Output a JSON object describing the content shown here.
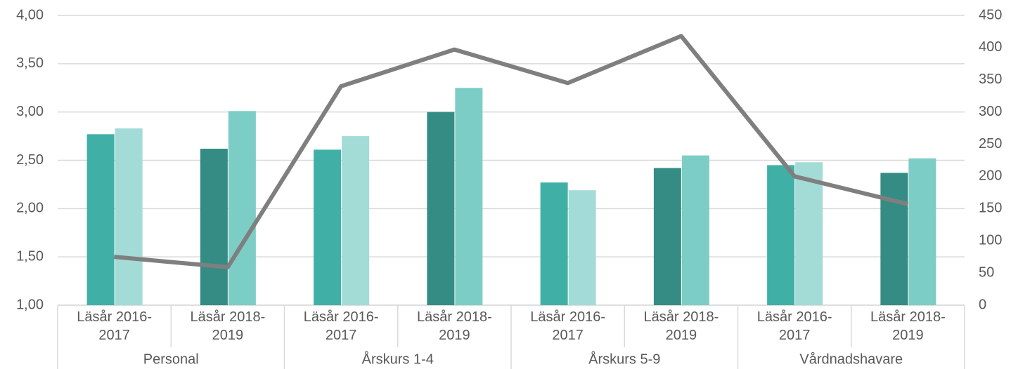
{
  "chart_data": {
    "type": "bar",
    "categories": [
      "Läsår 2016-2017",
      "Läsår 2018-2019",
      "Läsår 2016-2017",
      "Läsår 2018-2019",
      "Läsår 2016-2017",
      "Läsår 2018-2019",
      "Läsår 2016-2017",
      "Läsår 2018-2019"
    ],
    "groups": [
      "Personal",
      "Årskurs 1-4",
      "Årskurs 5-9",
      "Vårdnadshavare"
    ],
    "series": [
      {
        "type": "bar",
        "colors": [
          "#40b0a6",
          "#358c84",
          "#40b0a6",
          "#358c84",
          "#40b0a6",
          "#358c84",
          "#40b0a6",
          "#358c84"
        ],
        "values": [
          2.77,
          2.62,
          2.61,
          3.0,
          2.27,
          2.42,
          2.45,
          2.37
        ]
      },
      {
        "type": "bar",
        "colors": [
          "#a3dbd7",
          "#7ccdc5",
          "#a3dbd7",
          "#7ccdc5",
          "#a3dbd7",
          "#7ccdc5",
          "#a3dbd7",
          "#7ccdc5"
        ],
        "values": [
          2.83,
          3.01,
          2.75,
          3.25,
          2.19,
          2.55,
          2.48,
          2.52
        ]
      },
      {
        "type": "line",
        "axis": "y2",
        "color": "#7f7f7f",
        "values": [
          75,
          59,
          340,
          397,
          345,
          418,
          200,
          157
        ]
      }
    ],
    "ylim": [
      1,
      4
    ],
    "yticks": [
      {
        "value": 1,
        "label": "1,00"
      },
      {
        "value": 1.5,
        "label": "1,50"
      },
      {
        "value": 2,
        "label": "2,00"
      },
      {
        "value": 2.5,
        "label": "2,50"
      },
      {
        "value": 3,
        "label": "3,00"
      },
      {
        "value": 3.5,
        "label": "3,50"
      },
      {
        "value": 4,
        "label": "4,00"
      }
    ],
    "y2lim": [
      0,
      450
    ],
    "y2ticks": [
      0,
      50,
      100,
      150,
      200,
      250,
      300,
      350,
      400,
      450
    ],
    "grid": true
  }
}
